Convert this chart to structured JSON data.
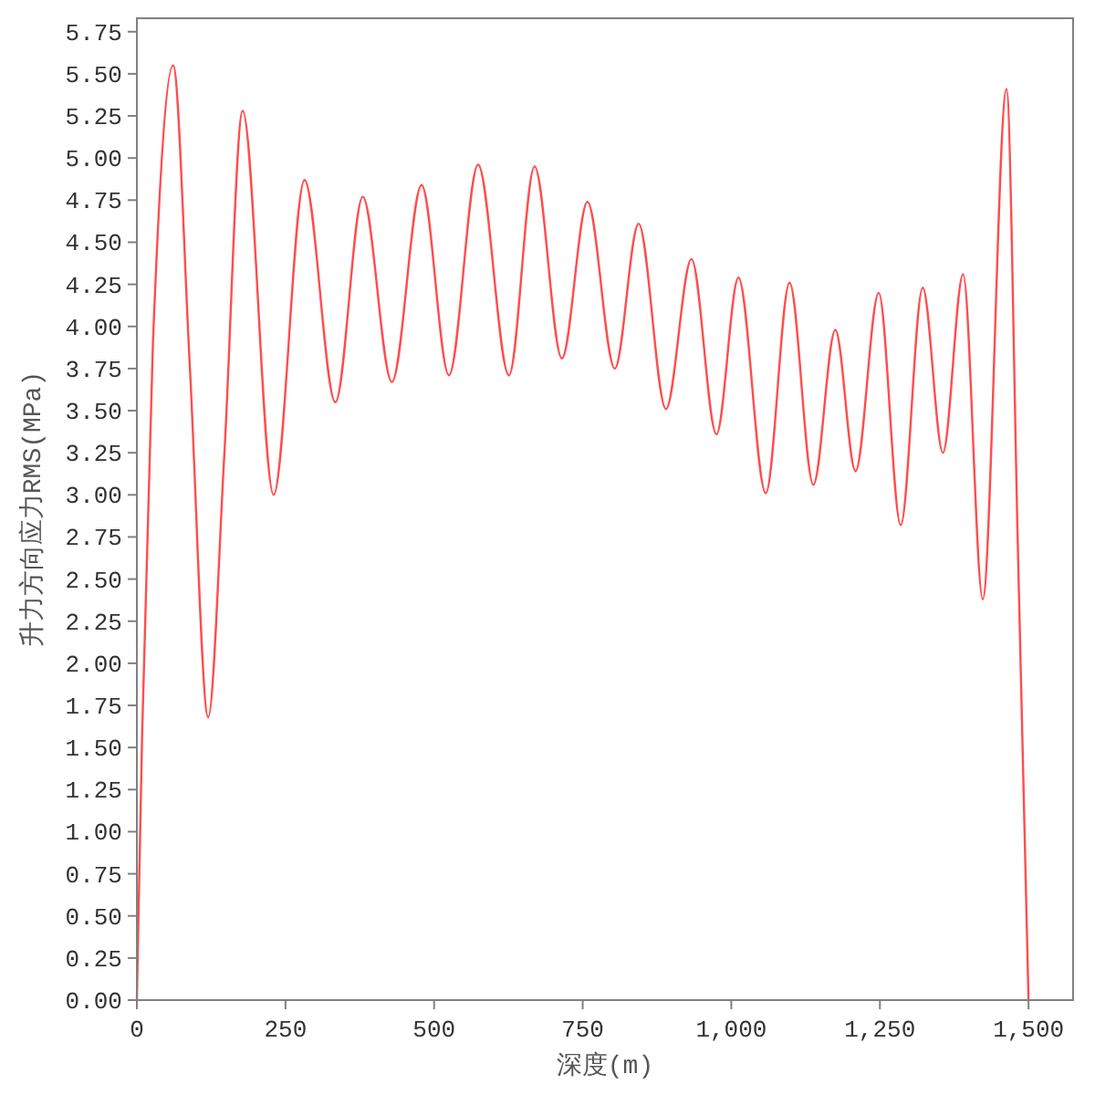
{
  "chart_data": {
    "type": "line",
    "xlabel": "深度(m)",
    "ylabel": "升力方向应力RMS(MPa)",
    "color": "#ff4d4d",
    "x": [
      0,
      9,
      27,
      61,
      89,
      120,
      147,
      178,
      230,
      282,
      334,
      380,
      429,
      479,
      525,
      574,
      626,
      669,
      715,
      758,
      804,
      844,
      890,
      933,
      975,
      1012,
      1058,
      1098,
      1138,
      1175,
      1209,
      1248,
      1285,
      1322,
      1356,
      1390,
      1423,
      1463,
      1482,
      1500
    ],
    "values": [
      0,
      1.6,
      3.9,
      5.55,
      3.77,
      1.68,
      3.23,
      5.28,
      3.0,
      4.87,
      3.55,
      4.77,
      3.67,
      4.84,
      3.71,
      4.96,
      3.71,
      4.95,
      3.81,
      4.74,
      3.75,
      4.61,
      3.51,
      4.4,
      3.36,
      4.29,
      3.01,
      4.26,
      3.06,
      3.98,
      3.14,
      4.2,
      2.82,
      4.23,
      3.25,
      4.31,
      2.38,
      5.41,
      2.7,
      0
    ],
    "xlim": [
      0,
      1575
    ],
    "ylim": [
      0,
      5.83
    ],
    "xticks": [
      0,
      250,
      500,
      750,
      {
        "value": 1000,
        "label": "1,000"
      },
      {
        "value": 1250,
        "label": "1,250"
      },
      {
        "value": 1500,
        "label": "1,500"
      }
    ],
    "yticks": [
      {
        "value": 0,
        "label": "0.00"
      },
      {
        "value": 0.25,
        "label": "0.25"
      },
      {
        "value": 0.5,
        "label": "0.50"
      },
      {
        "value": 0.75,
        "label": "0.75"
      },
      {
        "value": 1,
        "label": "1.00"
      },
      {
        "value": 1.25,
        "label": "1.25"
      },
      {
        "value": 1.5,
        "label": "1.50"
      },
      {
        "value": 1.75,
        "label": "1.75"
      },
      {
        "value": 2,
        "label": "2.00"
      },
      {
        "value": 2.25,
        "label": "2.25"
      },
      {
        "value": 2.5,
        "label": "2.50"
      },
      {
        "value": 2.75,
        "label": "2.75"
      },
      {
        "value": 3,
        "label": "3.00"
      },
      {
        "value": 3.25,
        "label": "3.25"
      },
      {
        "value": 3.5,
        "label": "3.50"
      },
      {
        "value": 3.75,
        "label": "3.75"
      },
      {
        "value": 4,
        "label": "4.00"
      },
      {
        "value": 4.25,
        "label": "4.25"
      },
      {
        "value": 4.5,
        "label": "4.50"
      },
      {
        "value": 4.75,
        "label": "4.75"
      },
      {
        "value": 5,
        "label": "5.00"
      },
      {
        "value": 5.25,
        "label": "5.25"
      },
      {
        "value": 5.5,
        "label": "5.50"
      },
      {
        "value": 5.75,
        "label": "5.75"
      }
    ]
  }
}
